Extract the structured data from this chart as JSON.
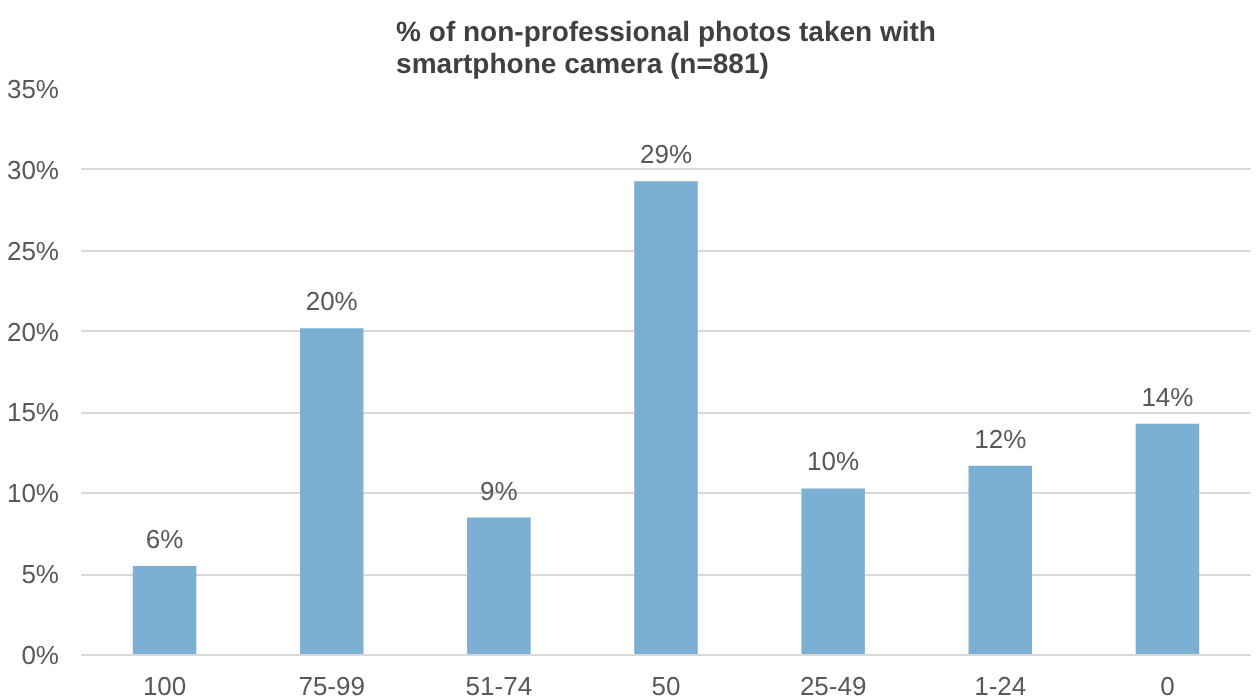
{
  "chart_data": {
    "type": "bar",
    "title": "% of non-professional photos taken with\nsmartphone camera (n=881)",
    "categories": [
      "100",
      "75-99",
      "51-74",
      "50",
      "25-49",
      "1-24",
      "0"
    ],
    "values": [
      5.5,
      20.2,
      8.5,
      29.3,
      10.3,
      11.7,
      14.3
    ],
    "value_labels": [
      "6%",
      "20%",
      "9%",
      "29%",
      "10%",
      "12%",
      "14%"
    ],
    "color": "#7bafd4",
    "ylim": [
      0,
      35
    ],
    "yticks": [
      {
        "value": 0,
        "label": "0%"
      },
      {
        "value": 5,
        "label": "5%"
      },
      {
        "value": 10,
        "label": "10%"
      },
      {
        "value": 15,
        "label": "15%"
      },
      {
        "value": 20,
        "label": "20%"
      },
      {
        "value": 25,
        "label": "25%"
      },
      {
        "value": 30,
        "label": "30%"
      },
      {
        "value": 35,
        "label": "35%"
      }
    ],
    "grid": "y"
  }
}
